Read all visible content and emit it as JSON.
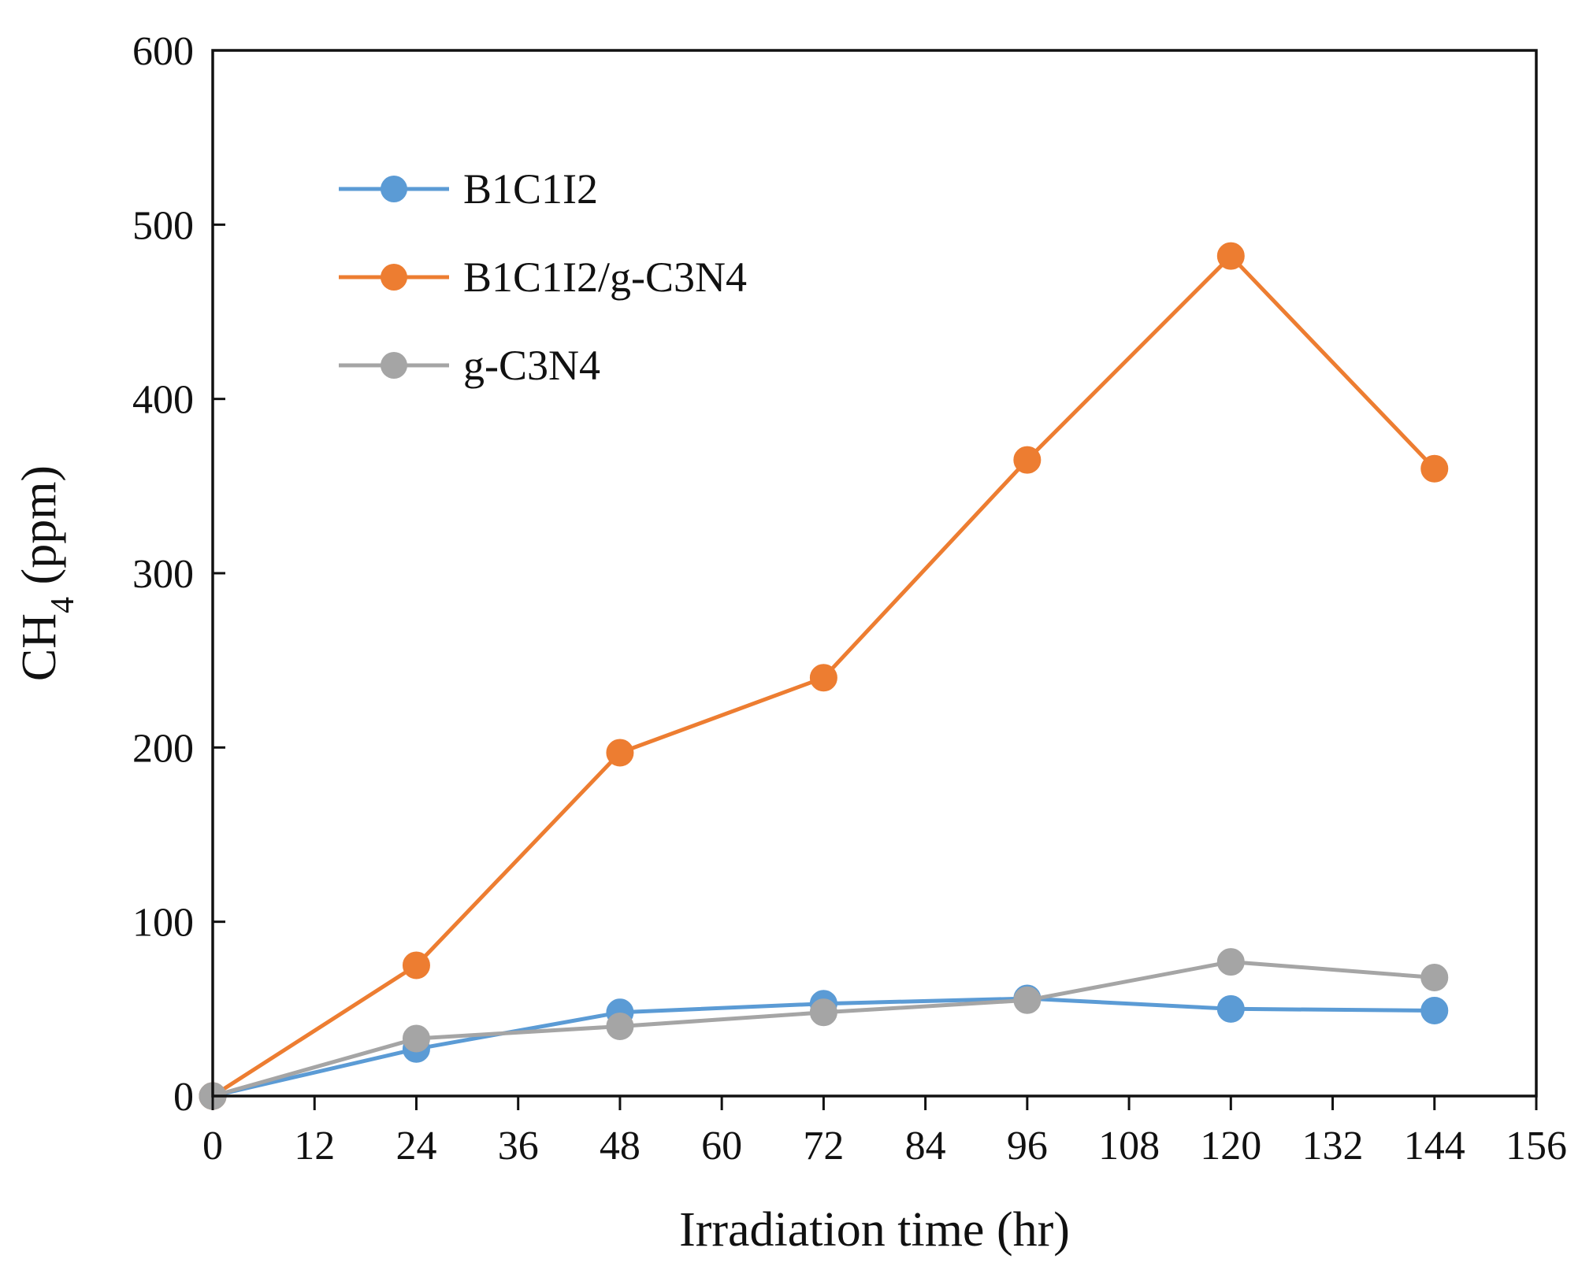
{
  "chart_data": {
    "type": "line",
    "title": "",
    "xlabel": "Irradiation time (hr)",
    "ylabel": {
      "prefix": "CH",
      "subscript": "4",
      "suffix": " (ppm)"
    },
    "xlim": [
      0,
      156
    ],
    "ylim": [
      0,
      600
    ],
    "x_ticks": [
      0,
      12,
      24,
      36,
      48,
      60,
      72,
      84,
      96,
      108,
      120,
      132,
      144,
      156
    ],
    "y_ticks": [
      0,
      100,
      200,
      300,
      400,
      500,
      600
    ],
    "grid": false,
    "legend_position": "top-left",
    "series": [
      {
        "name": "B1C1I2",
        "color": "#5B9BD5",
        "x": [
          0,
          24,
          48,
          72,
          96,
          120,
          144
        ],
        "values": [
          0,
          27,
          48,
          53,
          56,
          50,
          49
        ]
      },
      {
        "name": "B1C1I2/g-C3N4",
        "color": "#ED7D31",
        "x": [
          0,
          24,
          48,
          72,
          96,
          120,
          144
        ],
        "values": [
          0,
          75,
          197,
          240,
          365,
          482,
          360
        ]
      },
      {
        "name": "g-C3N4",
        "color": "#A5A5A5",
        "x": [
          0,
          24,
          48,
          72,
          96,
          120,
          144
        ],
        "values": [
          0,
          33,
          40,
          48,
          55,
          77,
          68
        ]
      }
    ]
  }
}
